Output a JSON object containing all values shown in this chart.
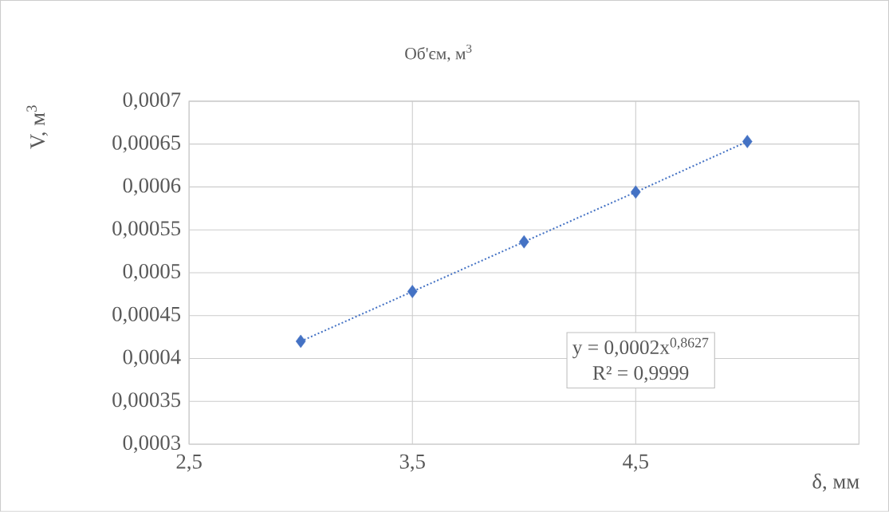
{
  "chart_data": {
    "type": "scatter",
    "title": "Об'єм,  м$^{3}$",
    "xlabel": "δ, мм",
    "ylabel": "V, м$^{3}$",
    "xlim": [
      2.5,
      5.5
    ],
    "ylim": [
      0.0003,
      0.0007
    ],
    "xticks": [
      {
        "value": 2.5,
        "label": "2,5"
      },
      {
        "value": 3.5,
        "label": "3,5"
      },
      {
        "value": 4.5,
        "label": "4,5"
      },
      {
        "value": 5.5,
        "label": null
      }
    ],
    "yticks": [
      {
        "value": 0.0003,
        "label": "0,0003"
      },
      {
        "value": 0.00035,
        "label": "0,00035"
      },
      {
        "value": 0.0004,
        "label": "0,0004"
      },
      {
        "value": 0.00045,
        "label": "0,00045"
      },
      {
        "value": 0.0005,
        "label": "0,0005"
      },
      {
        "value": 0.00055,
        "label": "0,00055"
      },
      {
        "value": 0.0006,
        "label": "0,0006"
      },
      {
        "value": 0.00065,
        "label": "0,00065"
      },
      {
        "value": 0.0007,
        "label": "0,0007"
      }
    ],
    "grid": true,
    "series": [
      {
        "type": "line",
        "line_style": "dotted",
        "color": "#4472c4",
        "x": [
          3,
          3.5,
          4,
          4.5,
          5
        ],
        "values": [
          0.00042,
          0.000478,
          0.000536,
          0.000594,
          0.000653
        ]
      },
      {
        "marker": "diamond",
        "color": "#4472c4",
        "x": [
          3,
          3.5,
          4,
          4.5,
          5
        ],
        "values": [
          0.00042,
          0.000478,
          0.000536,
          0.000594,
          0.000653
        ]
      }
    ],
    "annotations": [
      "y = 0,0002x$^{0,8627}$",
      "R² = 0,9999"
    ]
  }
}
